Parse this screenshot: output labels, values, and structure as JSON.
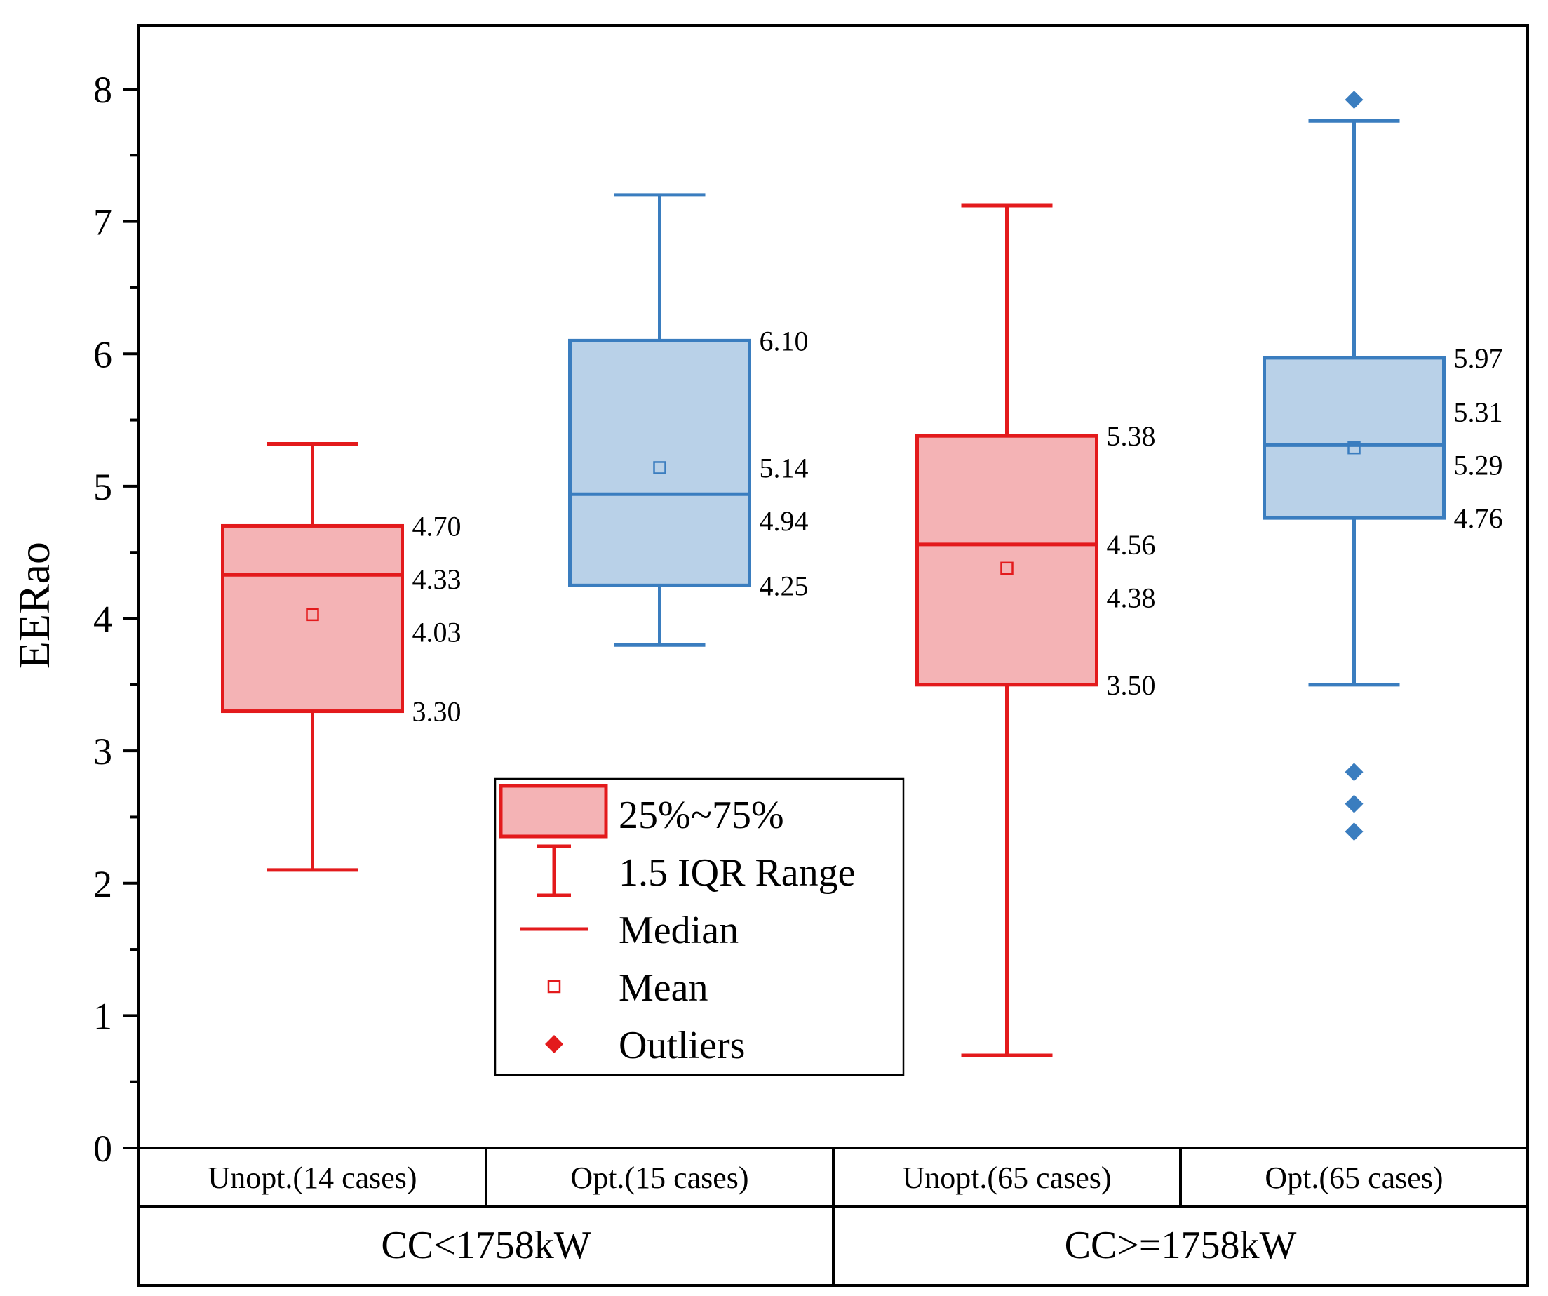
{
  "chart_data": {
    "type": "box",
    "ylabel": "EERao",
    "ylim": [
      0,
      8.5
    ],
    "yticks": [
      0,
      1,
      2,
      3,
      4,
      5,
      6,
      7,
      8
    ],
    "grid": false,
    "legend_position": "center",
    "colors": {
      "unopt_stroke": "#e31a1c",
      "unopt_fill": "#f4b3b5",
      "opt_stroke": "#3a7dbf",
      "opt_fill": "#b9d1e8"
    },
    "boxes": [
      {
        "name": "Unopt.(14 cases)",
        "style": "unopt",
        "q1": 3.3,
        "median": 4.33,
        "q3": 4.7,
        "mean": 4.03,
        "whisker_low": 2.1,
        "whisker_high": 5.32,
        "outliers": [],
        "value_labels": [
          {
            "text": "4.70",
            "y": 4.7
          },
          {
            "text": "4.33",
            "y": 4.3
          },
          {
            "text": "4.03",
            "y": 3.9
          },
          {
            "text": "3.30",
            "y": 3.3
          }
        ]
      },
      {
        "name": "Opt.(15 cases)",
        "style": "opt",
        "q1": 4.25,
        "median": 4.94,
        "q3": 6.1,
        "mean": 5.14,
        "whisker_low": 3.8,
        "whisker_high": 7.2,
        "outliers": [],
        "value_labels": [
          {
            "text": "6.10",
            "y": 6.1
          },
          {
            "text": "5.14",
            "y": 5.14
          },
          {
            "text": "4.94",
            "y": 4.74
          },
          {
            "text": "4.25",
            "y": 4.25
          }
        ]
      },
      {
        "name": "Unopt.(65 cases)",
        "style": "unopt",
        "q1": 3.5,
        "median": 4.56,
        "q3": 5.38,
        "mean": 4.38,
        "whisker_low": 0.7,
        "whisker_high": 7.12,
        "outliers": [],
        "value_labels": [
          {
            "text": "5.38",
            "y": 5.38
          },
          {
            "text": "4.56",
            "y": 4.56
          },
          {
            "text": "4.38",
            "y": 4.16
          },
          {
            "text": "3.50",
            "y": 3.5
          }
        ]
      },
      {
        "name": "Opt.(65 cases)",
        "style": "opt",
        "q1": 4.76,
        "median": 5.31,
        "q3": 5.97,
        "mean": 5.29,
        "whisker_low": 3.5,
        "whisker_high": 7.76,
        "outliers": [
          7.92,
          2.84,
          2.6,
          2.39
        ],
        "value_labels": [
          {
            "text": "5.97",
            "y": 5.97
          },
          {
            "text": "5.31",
            "y": 5.56
          },
          {
            "text": "5.29",
            "y": 5.16
          },
          {
            "text": "4.76",
            "y": 4.76
          }
        ]
      }
    ],
    "groups": [
      {
        "label": "CC<1758kW",
        "boxes": [
          0,
          1
        ]
      },
      {
        "label": "CC>=1758kW",
        "boxes": [
          2,
          3
        ]
      }
    ],
    "legend": [
      {
        "type": "box",
        "label": "25%~75%"
      },
      {
        "type": "whisker",
        "label": "1.5 IQR Range"
      },
      {
        "type": "median",
        "label": "Median"
      },
      {
        "type": "mean",
        "label": "Mean"
      },
      {
        "type": "outlier",
        "label": "Outliers"
      }
    ]
  }
}
